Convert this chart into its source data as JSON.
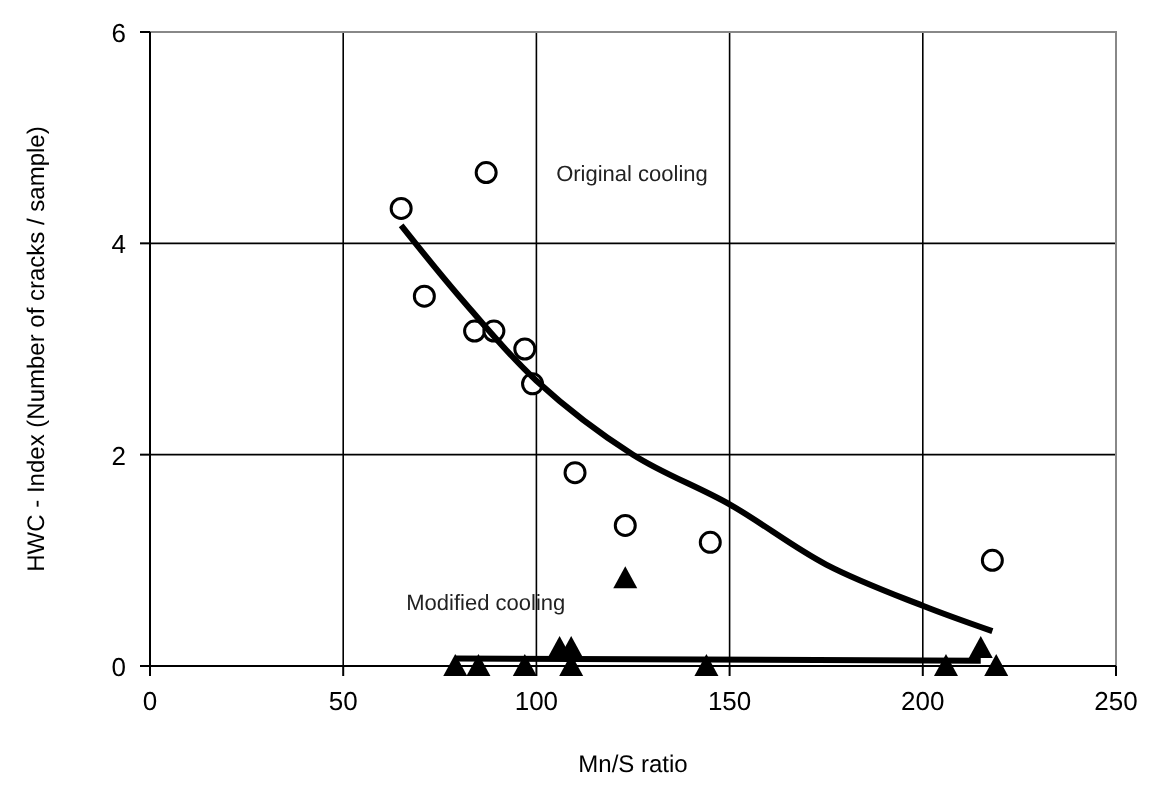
{
  "chart_data": {
    "type": "scatter",
    "xlabel": "Mn/S ratio",
    "ylabel": "HWC - Index (Number of cracks / sample)",
    "xlim": [
      0,
      250
    ],
    "xticks": [
      0,
      50,
      100,
      150,
      200,
      250
    ],
    "ylim": [
      0,
      6
    ],
    "yticks": [
      0,
      2,
      4,
      6
    ],
    "grid": true,
    "series": [
      {
        "name": "Original cooling",
        "marker": "circle",
        "color": "#000000",
        "x": [
          65,
          71,
          87,
          84,
          89,
          97,
          99,
          110,
          123,
          145,
          218
        ],
        "values": [
          4.33,
          3.5,
          4.67,
          3.17,
          3.17,
          3.0,
          2.67,
          1.83,
          1.33,
          1.17,
          1.0
        ]
      },
      {
        "name": "Modified cooling",
        "marker": "triangle",
        "color": "#000000",
        "x": [
          79,
          85,
          97,
          106,
          109,
          109,
          123,
          144,
          206,
          215,
          219
        ],
        "values": [
          0,
          0,
          0,
          0.17,
          0.17,
          0,
          0.83,
          0,
          0,
          0.17,
          0
        ]
      },
      {
        "type": "line",
        "marker": "none",
        "color": "#000000",
        "x": [
          65,
          80,
          100,
          125,
          150,
          175,
          200,
          218
        ],
        "values": [
          4.17,
          3.5,
          2.7,
          2.0,
          1.53,
          0.96,
          0.57,
          0.33
        ]
      },
      {
        "type": "line",
        "marker": "none",
        "color": "#000000",
        "x": [
          79,
          215
        ],
        "values": [
          0.07,
          0.05
        ]
      }
    ]
  }
}
